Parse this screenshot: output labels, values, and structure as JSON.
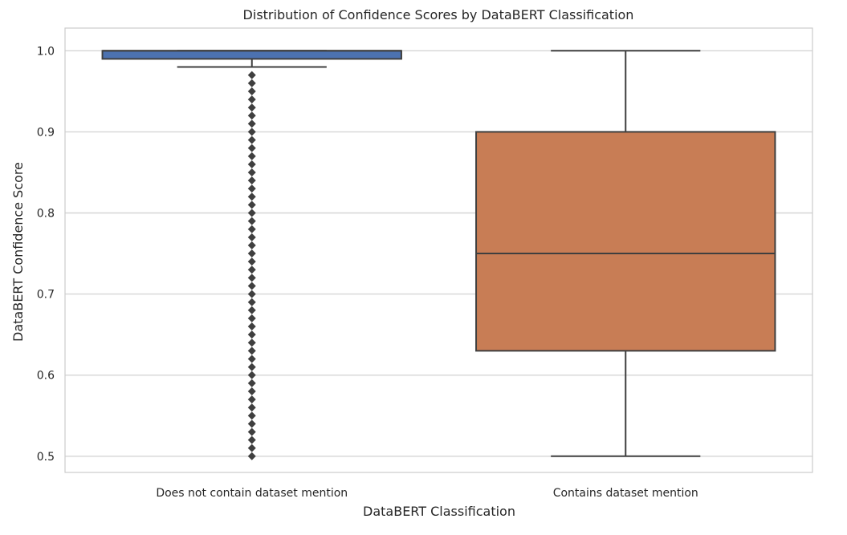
{
  "chart_data": {
    "type": "box",
    "title": "Distribution of Confidence Scores by DataBERT Classification",
    "xlabel": "DataBERT Classification",
    "ylabel": "DataBERT Confidence Score",
    "ylim": [
      0.48,
      1.028
    ],
    "yticks": [
      "0.5",
      "0.6",
      "0.7",
      "0.8",
      "0.9",
      "1.0"
    ],
    "grid": true,
    "categories": [
      "Does not contain dataset mention",
      "Contains dataset mention"
    ],
    "boxes": [
      {
        "category": "Does not contain dataset mention",
        "color": "#4c72b0",
        "q1": 0.99,
        "median": 1.0,
        "q3": 1.0,
        "whisker_low": 0.98,
        "whisker_high": 1.0,
        "outliers": [
          0.97,
          0.96,
          0.95,
          0.94,
          0.93,
          0.92,
          0.91,
          0.9,
          0.89,
          0.88,
          0.87,
          0.86,
          0.85,
          0.84,
          0.83,
          0.82,
          0.81,
          0.8,
          0.79,
          0.78,
          0.77,
          0.76,
          0.75,
          0.74,
          0.73,
          0.72,
          0.71,
          0.7,
          0.69,
          0.68,
          0.67,
          0.66,
          0.65,
          0.64,
          0.63,
          0.62,
          0.61,
          0.6,
          0.59,
          0.58,
          0.57,
          0.56,
          0.55,
          0.54,
          0.53,
          0.52,
          0.51,
          0.5
        ]
      },
      {
        "category": "Contains dataset mention",
        "color": "#c87d55",
        "q1": 0.63,
        "median": 0.75,
        "q3": 0.9,
        "whisker_low": 0.5,
        "whisker_high": 1.0,
        "outliers": []
      }
    ]
  }
}
